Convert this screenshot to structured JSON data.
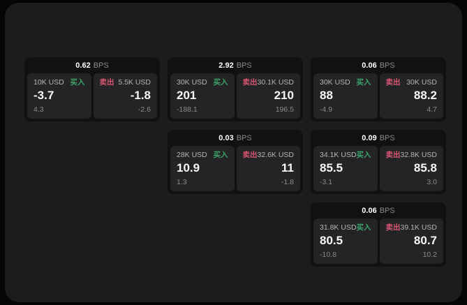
{
  "labels": {
    "bps_unit": "BPS",
    "buy": "买入",
    "sell": "卖出"
  },
  "colors": {
    "buy_green": "#3da368",
    "sell_red": "#d65672",
    "panel_bg": "#1c1c1e",
    "card_bg": "#111112",
    "tile_bg": "#242426"
  },
  "cards": [
    {
      "bps": "0.62",
      "buy": {
        "amount": "10K USD",
        "value": "-3.7",
        "delta": "4.3"
      },
      "sell": {
        "amount": "5.5K USD",
        "value": "-1.8",
        "delta": "-2.6"
      }
    },
    {
      "bps": "2.92",
      "buy": {
        "amount": "30K USD",
        "value": "201",
        "delta": "-188.1"
      },
      "sell": {
        "amount": "30.1K USD",
        "value": "210",
        "delta": "196.5"
      }
    },
    {
      "bps": "0.06",
      "buy": {
        "amount": "30K USD",
        "value": "88",
        "delta": "-4.9"
      },
      "sell": {
        "amount": "30K USD",
        "value": "88.2",
        "delta": "4.7"
      }
    },
    {
      "bps": "0.03",
      "buy": {
        "amount": "28K USD",
        "value": "10.9",
        "delta": "1.3"
      },
      "sell": {
        "amount": "32.6K USD",
        "value": "11",
        "delta": "-1.8"
      }
    },
    {
      "bps": "0.09",
      "buy": {
        "amount": "34.1K USD",
        "value": "85.5",
        "delta": "-3.1"
      },
      "sell": {
        "amount": "32.8K USD",
        "value": "85.8",
        "delta": "3.0"
      }
    },
    {
      "bps": "0.06",
      "buy": {
        "amount": "31.8K USD",
        "value": "80.5",
        "delta": "-10.8"
      },
      "sell": {
        "amount": "39.1K USD",
        "value": "80.7",
        "delta": "10.2"
      }
    }
  ]
}
